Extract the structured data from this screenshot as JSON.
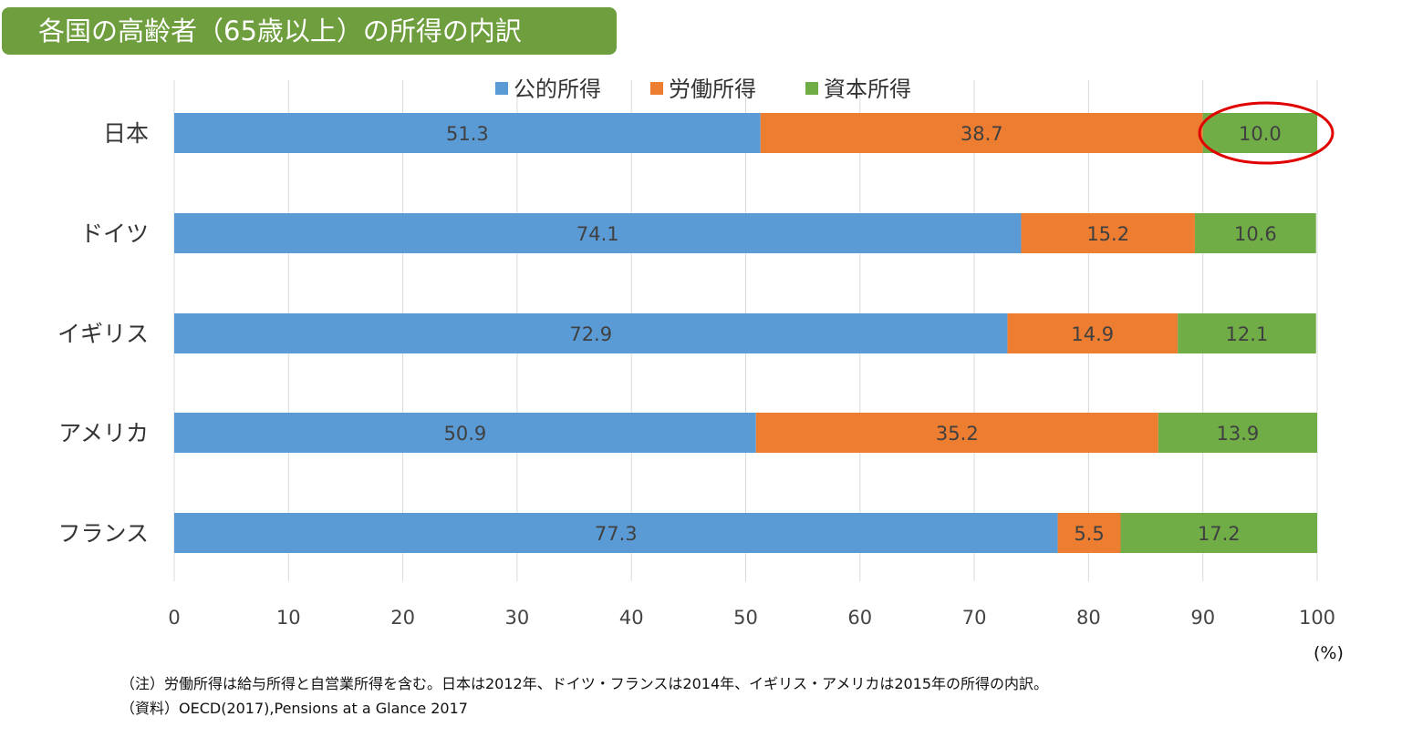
{
  "title": "各国の高齢者（65歳以上）の所得の内訳",
  "chart_data": {
    "type": "bar",
    "orientation": "horizontal",
    "stacked": true,
    "categories": [
      "日本",
      "ドイツ",
      "イギリス",
      "アメリカ",
      "フランス"
    ],
    "series": [
      {
        "name": "公的所得",
        "color": "#5b9bd5",
        "values": [
          51.3,
          74.1,
          72.9,
          50.9,
          77.3
        ]
      },
      {
        "name": "労働所得",
        "color": "#ed7d31",
        "values": [
          38.7,
          15.2,
          14.9,
          35.2,
          5.5
        ]
      },
      {
        "name": "資本所得",
        "color": "#70ad47",
        "values": [
          10.0,
          10.6,
          12.1,
          13.9,
          17.2
        ]
      }
    ],
    "xlim": [
      0,
      100
    ],
    "xticks": [
      0,
      10,
      20,
      30,
      40,
      50,
      60,
      70,
      80,
      90,
      100
    ],
    "xlabel": "(%)",
    "grid": "vertical",
    "legend": "top",
    "data_labels": true,
    "annotation": {
      "type": "red-ellipse",
      "category": "日本",
      "series": "資本所得",
      "color": "#e00000"
    }
  },
  "notes": {
    "note": "（注）労働所得は給与所得と自営業所得を含む。日本は2012年、ドイツ・フランスは2014年、イギリス・アメリカは2015年の所得の内訳。",
    "source": "（資料）OECD(2017),Pensions at a Glance 2017"
  }
}
